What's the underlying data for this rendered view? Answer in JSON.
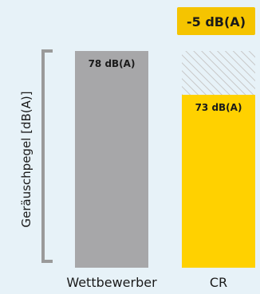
{
  "chart_data": {
    "type": "bar",
    "ylabel": "Geräuschpegel [dB(A)]",
    "categories": [
      "Wettbewerber",
      "CR"
    ],
    "values": [
      78,
      73
    ],
    "value_labels": [
      "78 dB(A)",
      "73 dB(A)"
    ],
    "reduction": {
      "value": -5,
      "label": "-5 dB(A)"
    },
    "colors": {
      "competitor": "#a7a7a9",
      "cr": "#ffd100",
      "badge": "#f5c400",
      "reduction_hatch": "#c8c8c8",
      "background": "#e7f2f8",
      "axis_bracket": "#9a9a9a"
    }
  }
}
